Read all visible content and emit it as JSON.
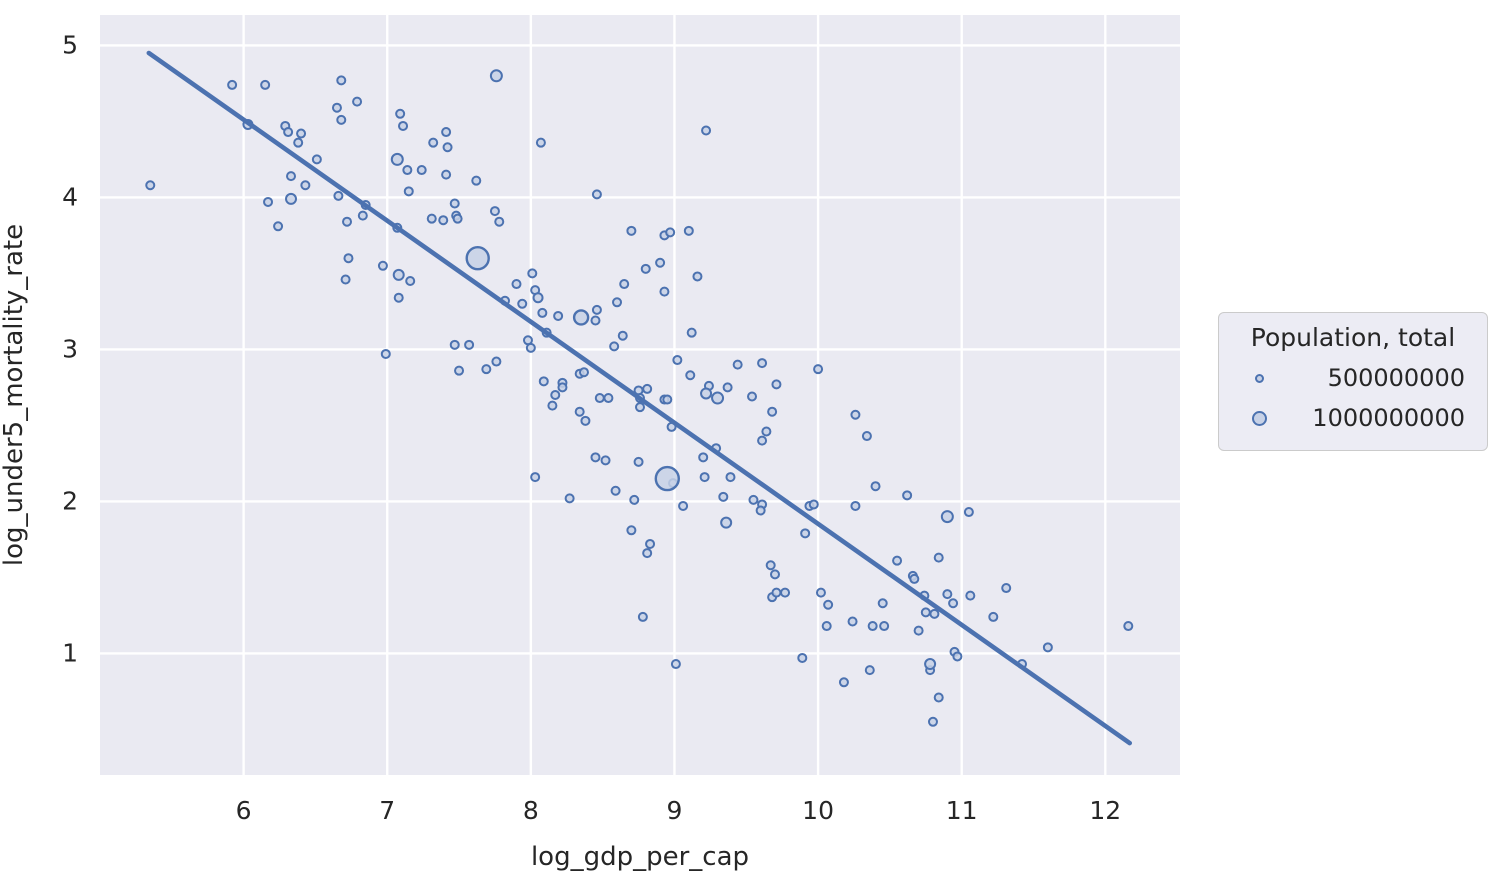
{
  "colors": {
    "marker_edge": "#4c72b0",
    "marker_fill": "#c7d1e6",
    "regression_line": "#4c72b0",
    "plot_background": "#eaeaf2",
    "gridline": "#ffffff",
    "text": "#262626",
    "legend_background": "#ececf4",
    "legend_border": "#cbcbcb"
  },
  "chart_data": {
    "type": "scatter",
    "title": "",
    "xlabel": "log_gdp_per_cap",
    "ylabel": "log_under5_mortality_rate",
    "xlim": [
      5.0,
      12.52
    ],
    "ylim": [
      0.2,
      5.2
    ],
    "xticks": [
      "6",
      "7",
      "8",
      "9",
      "10",
      "11",
      "12"
    ],
    "xtick_values": [
      6,
      7,
      8,
      9,
      10,
      11,
      12
    ],
    "yticks": [
      "1",
      "2",
      "3",
      "4",
      "5"
    ],
    "ytick_values": [
      1,
      2,
      3,
      4,
      5
    ],
    "grid": true,
    "legend": {
      "title": "Population, total",
      "position": "right-outside",
      "entries": [
        {
          "label": "500000000",
          "radius": 4.5
        },
        {
          "label": "1000000000",
          "radius": 7.5
        }
      ]
    },
    "size_field": "Population, total",
    "regression_line": {
      "x1": 5.34,
      "y1": 4.95,
      "x2": 12.17,
      "y2": 0.41
    },
    "points": [
      [
        5.35,
        4.08,
        4
      ],
      [
        5.92,
        4.74,
        4
      ],
      [
        6.15,
        4.74,
        4
      ],
      [
        6.68,
        4.77,
        4
      ],
      [
        6.79,
        4.63,
        4
      ],
      [
        6.65,
        4.59,
        4
      ],
      [
        6.68,
        4.51,
        4
      ],
      [
        6.03,
        4.48,
        4.5
      ],
      [
        6.29,
        4.47,
        4
      ],
      [
        6.31,
        4.43,
        4
      ],
      [
        6.4,
        4.42,
        4
      ],
      [
        6.38,
        4.36,
        4
      ],
      [
        6.51,
        4.25,
        4
      ],
      [
        6.33,
        4.14,
        4
      ],
      [
        6.43,
        4.08,
        4
      ],
      [
        6.17,
        3.97,
        4
      ],
      [
        6.33,
        3.99,
        5
      ],
      [
        6.66,
        4.01,
        4
      ],
      [
        6.24,
        3.81,
        4
      ],
      [
        6.72,
        3.84,
        4
      ],
      [
        6.83,
        3.88,
        4
      ],
      [
        6.85,
        3.95,
        4
      ],
      [
        6.73,
        3.6,
        4
      ],
      [
        6.71,
        3.46,
        4
      ],
      [
        6.99,
        2.97,
        4
      ],
      [
        6.97,
        3.55,
        4
      ],
      [
        7.76,
        4.8,
        5.5
      ],
      [
        7.09,
        4.55,
        4
      ],
      [
        7.11,
        4.47,
        4
      ],
      [
        7.41,
        4.43,
        4
      ],
      [
        7.32,
        4.36,
        4
      ],
      [
        7.42,
        4.33,
        4
      ],
      [
        7.07,
        4.25,
        5.5
      ],
      [
        7.14,
        4.18,
        4
      ],
      [
        7.24,
        4.18,
        4
      ],
      [
        7.41,
        4.15,
        4
      ],
      [
        7.62,
        4.11,
        4
      ],
      [
        7.15,
        4.04,
        4
      ],
      [
        7.47,
        3.96,
        4
      ],
      [
        7.75,
        3.91,
        4
      ],
      [
        7.78,
        3.84,
        4
      ],
      [
        7.31,
        3.86,
        4
      ],
      [
        7.39,
        3.85,
        4
      ],
      [
        7.48,
        3.88,
        4
      ],
      [
        7.49,
        3.86,
        4
      ],
      [
        7.07,
        3.8,
        4
      ],
      [
        7.63,
        3.6,
        11
      ],
      [
        7.08,
        3.49,
        5
      ],
      [
        7.16,
        3.45,
        4
      ],
      [
        7.08,
        3.34,
        4
      ],
      [
        7.47,
        3.03,
        4
      ],
      [
        7.57,
        3.03,
        4
      ],
      [
        7.5,
        2.86,
        4
      ],
      [
        7.69,
        2.87,
        4
      ],
      [
        7.76,
        2.92,
        4
      ],
      [
        8.07,
        4.36,
        4
      ],
      [
        8.46,
        4.02,
        4
      ],
      [
        7.9,
        3.43,
        4
      ],
      [
        8.03,
        3.39,
        4
      ],
      [
        8.05,
        3.34,
        4.5
      ],
      [
        7.82,
        3.32,
        4
      ],
      [
        7.94,
        3.3,
        4
      ],
      [
        8.08,
        3.24,
        4
      ],
      [
        8.19,
        3.22,
        4
      ],
      [
        8.35,
        3.21,
        7
      ],
      [
        8.46,
        3.26,
        4
      ],
      [
        8.45,
        3.19,
        4
      ],
      [
        8.11,
        3.11,
        4
      ],
      [
        8.6,
        3.31,
        4
      ],
      [
        8.65,
        3.43,
        4
      ],
      [
        8.01,
        3.5,
        4
      ],
      [
        8.7,
        3.78,
        4
      ],
      [
        8.93,
        3.75,
        4
      ],
      [
        8.97,
        3.77,
        4
      ],
      [
        9.1,
        3.78,
        4
      ],
      [
        8.8,
        3.53,
        4
      ],
      [
        8.9,
        3.57,
        4
      ],
      [
        9.16,
        3.48,
        4
      ],
      [
        8.93,
        3.38,
        4
      ],
      [
        9.22,
        4.44,
        4
      ],
      [
        8.64,
        3.09,
        4
      ],
      [
        8.58,
        3.02,
        4
      ],
      [
        9.12,
        3.11,
        4
      ],
      [
        7.98,
        3.06,
        4
      ],
      [
        8.0,
        3.01,
        4
      ],
      [
        8.09,
        2.79,
        4
      ],
      [
        8.17,
        2.7,
        4
      ],
      [
        8.15,
        2.63,
        4
      ],
      [
        8.22,
        2.78,
        4
      ],
      [
        8.22,
        2.75,
        4
      ],
      [
        8.34,
        2.84,
        4
      ],
      [
        8.37,
        2.85,
        4
      ],
      [
        8.48,
        2.68,
        4
      ],
      [
        8.54,
        2.68,
        4
      ],
      [
        8.34,
        2.59,
        4
      ],
      [
        8.38,
        2.53,
        4
      ],
      [
        8.75,
        2.73,
        4
      ],
      [
        8.81,
        2.74,
        4
      ],
      [
        8.76,
        2.68,
        4
      ],
      [
        8.76,
        2.62,
        4
      ],
      [
        8.93,
        2.67,
        4
      ],
      [
        8.95,
        2.67,
        4
      ],
      [
        9.02,
        2.93,
        4
      ],
      [
        9.11,
        2.83,
        4
      ],
      [
        8.98,
        2.49,
        4
      ],
      [
        9.24,
        2.76,
        4
      ],
      [
        9.22,
        2.71,
        5
      ],
      [
        9.3,
        2.68,
        5.5
      ],
      [
        9.37,
        2.75,
        4
      ],
      [
        9.44,
        2.9,
        4
      ],
      [
        9.61,
        2.91,
        4
      ],
      [
        9.54,
        2.69,
        4
      ],
      [
        9.71,
        2.77,
        4
      ],
      [
        9.68,
        2.59,
        4
      ],
      [
        9.64,
        2.46,
        4
      ],
      [
        9.61,
        2.4,
        4
      ],
      [
        9.29,
        2.35,
        4
      ],
      [
        9.2,
        2.29,
        4
      ],
      [
        10.0,
        2.87,
        4
      ],
      [
        8.45,
        2.29,
        4
      ],
      [
        8.52,
        2.27,
        4
      ],
      [
        8.75,
        2.26,
        4
      ],
      [
        8.03,
        2.16,
        4
      ],
      [
        8.95,
        2.15,
        11.5
      ],
      [
        8.99,
        2.12,
        4
      ],
      [
        9.21,
        2.16,
        4
      ],
      [
        9.39,
        2.16,
        4
      ],
      [
        8.59,
        2.07,
        4
      ],
      [
        8.27,
        2.02,
        4
      ],
      [
        8.72,
        2.01,
        4
      ],
      [
        9.06,
        1.97,
        4
      ],
      [
        9.34,
        2.03,
        4
      ],
      [
        9.55,
        2.01,
        4
      ],
      [
        9.61,
        1.98,
        4
      ],
      [
        9.6,
        1.94,
        4
      ],
      [
        9.94,
        1.97,
        4
      ],
      [
        9.97,
        1.98,
        4
      ],
      [
        9.36,
        1.86,
        5
      ],
      [
        8.7,
        1.81,
        4
      ],
      [
        9.91,
        1.79,
        4
      ],
      [
        8.83,
        1.72,
        4
      ],
      [
        8.81,
        1.66,
        4
      ],
      [
        8.78,
        1.24,
        4
      ],
      [
        9.67,
        1.58,
        4
      ],
      [
        9.7,
        1.52,
        4
      ],
      [
        9.68,
        1.37,
        4
      ],
      [
        9.71,
        1.4,
        4
      ],
      [
        9.77,
        1.4,
        4
      ],
      [
        10.02,
        1.4,
        4
      ],
      [
        9.01,
        0.93,
        4
      ],
      [
        9.89,
        0.97,
        4
      ],
      [
        10.26,
        2.57,
        4
      ],
      [
        10.34,
        2.43,
        4
      ],
      [
        10.4,
        2.1,
        4
      ],
      [
        10.62,
        2.04,
        4
      ],
      [
        10.26,
        1.97,
        4
      ],
      [
        10.9,
        1.9,
        5.5
      ],
      [
        11.05,
        1.93,
        4
      ],
      [
        10.55,
        1.61,
        4
      ],
      [
        10.84,
        1.63,
        4
      ],
      [
        10.66,
        1.51,
        4
      ],
      [
        10.67,
        1.49,
        4
      ],
      [
        10.74,
        1.38,
        4
      ],
      [
        10.9,
        1.39,
        4
      ],
      [
        10.94,
        1.33,
        4
      ],
      [
        11.06,
        1.38,
        4
      ],
      [
        11.31,
        1.43,
        4
      ],
      [
        10.07,
        1.32,
        4
      ],
      [
        10.45,
        1.33,
        4
      ],
      [
        10.06,
        1.18,
        4
      ],
      [
        10.24,
        1.21,
        4
      ],
      [
        10.38,
        1.18,
        4
      ],
      [
        10.46,
        1.18,
        4
      ],
      [
        10.7,
        1.15,
        4
      ],
      [
        10.75,
        1.27,
        4
      ],
      [
        10.81,
        1.26,
        4
      ],
      [
        10.95,
        1.01,
        4
      ],
      [
        10.97,
        0.98,
        4
      ],
      [
        10.78,
        0.93,
        5
      ],
      [
        10.78,
        0.89,
        4
      ],
      [
        10.36,
        0.89,
        4
      ],
      [
        10.18,
        0.81,
        4
      ],
      [
        10.84,
        0.71,
        4
      ],
      [
        10.8,
        0.55,
        4
      ],
      [
        11.22,
        1.24,
        4
      ],
      [
        11.6,
        1.04,
        4
      ],
      [
        11.42,
        0.93,
        4
      ],
      [
        12.16,
        1.18,
        4
      ]
    ]
  }
}
